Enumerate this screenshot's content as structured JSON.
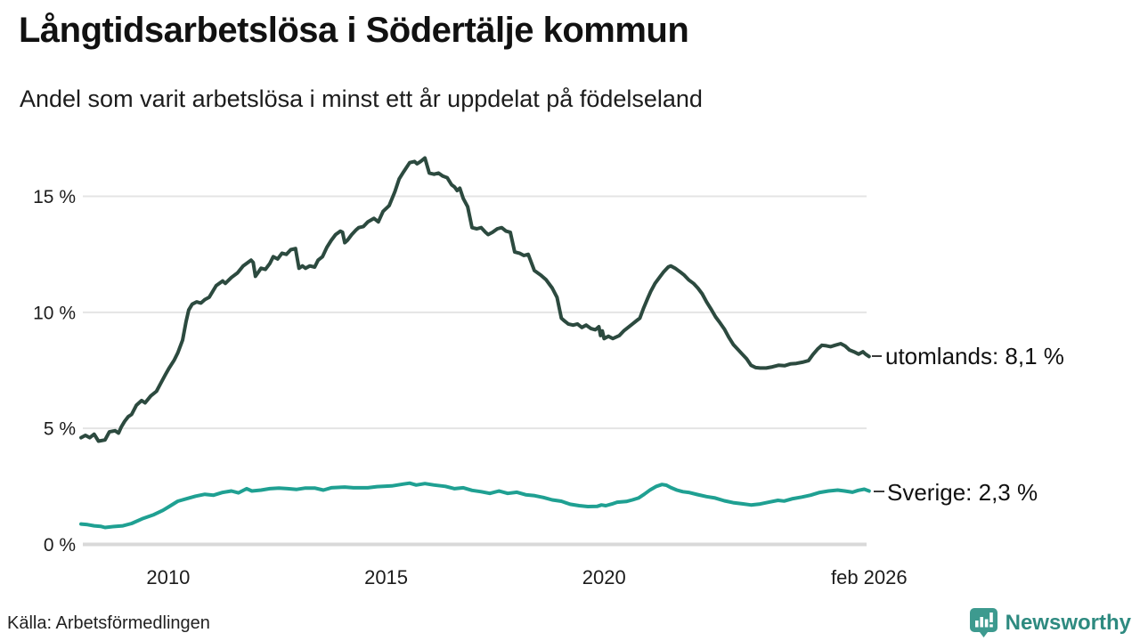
{
  "title": "Långtidsarbetslösa i Södertälje kommun",
  "subtitle": "Andel som varit arbetslösa i minst ett år uppdelat på födelseland",
  "source": "Källa: Arbetsförmedlingen",
  "brand": {
    "name": "Newsworthy",
    "icon_color": "#3d9a8f",
    "text_color": "#2e8a80"
  },
  "colors": {
    "grid": "#e4e4e4",
    "axis_line": "#d9d9d9",
    "label_dash": "#3a3a3a",
    "text": "#111111"
  },
  "chart_data": {
    "type": "line",
    "title": "Långtidsarbetslösa i Södertälje kommun",
    "subtitle": "Andel som varit arbetslösa i minst ett år uppdelat på födelseland",
    "xlabel": "",
    "ylabel": "",
    "xlim": [
      2008.0,
      2026.08
    ],
    "ylim": [
      0,
      15
    ],
    "grid": true,
    "legend_position": "right-end-annotations",
    "y_ticks": [
      {
        "value": 0,
        "label": "0 %",
        "axis": true
      },
      {
        "value": 5,
        "label": "5 %",
        "axis": false
      },
      {
        "value": 10,
        "label": "10 %",
        "axis": false
      },
      {
        "value": 15,
        "label": "15 %",
        "axis": false
      }
    ],
    "x_ticks": [
      {
        "value": 2010,
        "label": "2010"
      },
      {
        "value": 2015,
        "label": "2015"
      },
      {
        "value": 2020,
        "label": "2020"
      },
      {
        "value": 2026.08,
        "label": "feb 2026"
      }
    ],
    "series": [
      {
        "name": "utomlands",
        "label": "utomlands: 8,1 %",
        "end_value": "8,1 %",
        "color": "#2c4a3f",
        "points": [
          [
            2008.0,
            4.6
          ],
          [
            2008.1,
            4.7
          ],
          [
            2008.2,
            4.6
          ],
          [
            2008.3,
            4.75
          ],
          [
            2008.4,
            4.45
          ],
          [
            2008.55,
            4.5
          ],
          [
            2008.65,
            4.85
          ],
          [
            2008.78,
            4.9
          ],
          [
            2008.86,
            4.8
          ],
          [
            2008.92,
            5.05
          ],
          [
            2009.0,
            5.3
          ],
          [
            2009.08,
            5.5
          ],
          [
            2009.16,
            5.6
          ],
          [
            2009.27,
            6.0
          ],
          [
            2009.39,
            6.2
          ],
          [
            2009.47,
            6.1
          ],
          [
            2009.6,
            6.4
          ],
          [
            2009.73,
            6.6
          ],
          [
            2009.83,
            6.95
          ],
          [
            2009.93,
            7.3
          ],
          [
            2010.02,
            7.6
          ],
          [
            2010.14,
            7.95
          ],
          [
            2010.22,
            8.25
          ],
          [
            2010.33,
            8.8
          ],
          [
            2010.41,
            9.6
          ],
          [
            2010.47,
            10.1
          ],
          [
            2010.55,
            10.35
          ],
          [
            2010.65,
            10.45
          ],
          [
            2010.75,
            10.4
          ],
          [
            2010.84,
            10.55
          ],
          [
            2010.94,
            10.65
          ],
          [
            2011.1,
            11.15
          ],
          [
            2011.25,
            11.35
          ],
          [
            2011.31,
            11.25
          ],
          [
            2011.45,
            11.5
          ],
          [
            2011.59,
            11.7
          ],
          [
            2011.72,
            12.0
          ],
          [
            2011.9,
            12.25
          ],
          [
            2011.95,
            12.15
          ],
          [
            2012.0,
            11.55
          ],
          [
            2012.13,
            11.9
          ],
          [
            2012.23,
            11.85
          ],
          [
            2012.33,
            12.1
          ],
          [
            2012.41,
            12.4
          ],
          [
            2012.51,
            12.3
          ],
          [
            2012.61,
            12.55
          ],
          [
            2012.71,
            12.5
          ],
          [
            2012.81,
            12.7
          ],
          [
            2012.92,
            12.75
          ],
          [
            2013.0,
            11.9
          ],
          [
            2013.08,
            12.0
          ],
          [
            2013.15,
            11.9
          ],
          [
            2013.25,
            12.0
          ],
          [
            2013.36,
            11.95
          ],
          [
            2013.44,
            12.25
          ],
          [
            2013.54,
            12.4
          ],
          [
            2013.64,
            12.8
          ],
          [
            2013.74,
            13.1
          ],
          [
            2013.84,
            13.35
          ],
          [
            2013.95,
            13.5
          ],
          [
            2014.0,
            13.45
          ],
          [
            2014.05,
            13.0
          ],
          [
            2014.11,
            13.1
          ],
          [
            2014.21,
            13.35
          ],
          [
            2014.31,
            13.55
          ],
          [
            2014.37,
            13.65
          ],
          [
            2014.48,
            13.7
          ],
          [
            2014.58,
            13.9
          ],
          [
            2014.72,
            14.05
          ],
          [
            2014.82,
            13.9
          ],
          [
            2014.93,
            14.35
          ],
          [
            2015.07,
            14.6
          ],
          [
            2015.2,
            15.2
          ],
          [
            2015.3,
            15.75
          ],
          [
            2015.4,
            16.05
          ],
          [
            2015.54,
            16.45
          ],
          [
            2015.65,
            16.5
          ],
          [
            2015.71,
            16.4
          ],
          [
            2015.79,
            16.5
          ],
          [
            2015.89,
            16.65
          ],
          [
            2015.99,
            16.0
          ],
          [
            2016.1,
            15.95
          ],
          [
            2016.2,
            16.0
          ],
          [
            2016.3,
            15.87
          ],
          [
            2016.4,
            15.8
          ],
          [
            2016.5,
            15.5
          ],
          [
            2016.57,
            15.4
          ],
          [
            2016.63,
            15.25
          ],
          [
            2016.69,
            15.35
          ],
          [
            2016.77,
            14.9
          ],
          [
            2016.87,
            14.55
          ],
          [
            2016.97,
            13.65
          ],
          [
            2017.08,
            13.6
          ],
          [
            2017.18,
            13.65
          ],
          [
            2017.28,
            13.45
          ],
          [
            2017.34,
            13.35
          ],
          [
            2017.44,
            13.45
          ],
          [
            2017.55,
            13.6
          ],
          [
            2017.65,
            13.65
          ],
          [
            2017.75,
            13.5
          ],
          [
            2017.85,
            13.45
          ],
          [
            2017.95,
            12.6
          ],
          [
            2018.06,
            12.55
          ],
          [
            2018.16,
            12.45
          ],
          [
            2018.26,
            12.5
          ],
          [
            2018.4,
            11.8
          ],
          [
            2018.55,
            11.6
          ],
          [
            2018.67,
            11.4
          ],
          [
            2018.81,
            11.05
          ],
          [
            2018.92,
            10.65
          ],
          [
            2019.02,
            9.75
          ],
          [
            2019.08,
            9.65
          ],
          [
            2019.18,
            9.5
          ],
          [
            2019.29,
            9.45
          ],
          [
            2019.39,
            9.5
          ],
          [
            2019.49,
            9.35
          ],
          [
            2019.59,
            9.45
          ],
          [
            2019.7,
            9.3
          ],
          [
            2019.8,
            9.25
          ],
          [
            2019.88,
            9.38
          ],
          [
            2019.92,
            9.0
          ],
          [
            2019.96,
            9.2
          ],
          [
            2020.0,
            8.87
          ],
          [
            2020.1,
            8.97
          ],
          [
            2020.2,
            8.87
          ],
          [
            2020.35,
            9.0
          ],
          [
            2020.45,
            9.2
          ],
          [
            2020.55,
            9.35
          ],
          [
            2020.65,
            9.5
          ],
          [
            2020.75,
            9.65
          ],
          [
            2020.82,
            9.75
          ],
          [
            2020.9,
            10.15
          ],
          [
            2021.0,
            10.6
          ],
          [
            2021.07,
            10.9
          ],
          [
            2021.17,
            11.25
          ],
          [
            2021.27,
            11.5
          ],
          [
            2021.37,
            11.75
          ],
          [
            2021.47,
            11.95
          ],
          [
            2021.53,
            12.0
          ],
          [
            2021.63,
            11.9
          ],
          [
            2021.74,
            11.75
          ],
          [
            2021.84,
            11.6
          ],
          [
            2021.94,
            11.4
          ],
          [
            2022.05,
            11.25
          ],
          [
            2022.15,
            11.05
          ],
          [
            2022.25,
            10.8
          ],
          [
            2022.35,
            10.45
          ],
          [
            2022.45,
            10.15
          ],
          [
            2022.56,
            9.8
          ],
          [
            2022.66,
            9.55
          ],
          [
            2022.76,
            9.28
          ],
          [
            2022.86,
            8.93
          ],
          [
            2022.97,
            8.6
          ],
          [
            2023.07,
            8.4
          ],
          [
            2023.17,
            8.2
          ],
          [
            2023.27,
            8.0
          ],
          [
            2023.37,
            7.72
          ],
          [
            2023.48,
            7.62
          ],
          [
            2023.58,
            7.6
          ],
          [
            2023.72,
            7.6
          ],
          [
            2023.86,
            7.65
          ],
          [
            2024.0,
            7.72
          ],
          [
            2024.14,
            7.7
          ],
          [
            2024.28,
            7.78
          ],
          [
            2024.41,
            7.8
          ],
          [
            2024.55,
            7.85
          ],
          [
            2024.69,
            7.92
          ],
          [
            2024.79,
            8.18
          ],
          [
            2024.9,
            8.42
          ],
          [
            2025.0,
            8.58
          ],
          [
            2025.1,
            8.56
          ],
          [
            2025.2,
            8.52
          ],
          [
            2025.3,
            8.58
          ],
          [
            2025.43,
            8.65
          ],
          [
            2025.53,
            8.55
          ],
          [
            2025.63,
            8.38
          ],
          [
            2025.73,
            8.3
          ],
          [
            2025.84,
            8.2
          ],
          [
            2025.94,
            8.3
          ],
          [
            2026.0,
            8.2
          ],
          [
            2026.08,
            8.1
          ]
        ]
      },
      {
        "name": "Sverige",
        "label": "Sverige: 2,3 %",
        "end_value": "2,3 %",
        "color": "#1fa092",
        "points": [
          [
            2008.0,
            0.88
          ],
          [
            2008.15,
            0.85
          ],
          [
            2008.3,
            0.8
          ],
          [
            2008.45,
            0.78
          ],
          [
            2008.55,
            0.73
          ],
          [
            2008.76,
            0.77
          ],
          [
            2008.96,
            0.8
          ],
          [
            2009.16,
            0.9
          ],
          [
            2009.4,
            1.1
          ],
          [
            2009.67,
            1.28
          ],
          [
            2009.88,
            1.47
          ],
          [
            2010.02,
            1.63
          ],
          [
            2010.22,
            1.86
          ],
          [
            2010.43,
            1.97
          ],
          [
            2010.63,
            2.08
          ],
          [
            2010.84,
            2.16
          ],
          [
            2011.04,
            2.12
          ],
          [
            2011.25,
            2.24
          ],
          [
            2011.45,
            2.3
          ],
          [
            2011.61,
            2.22
          ],
          [
            2011.8,
            2.4
          ],
          [
            2011.92,
            2.3
          ],
          [
            2012.13,
            2.34
          ],
          [
            2012.33,
            2.4
          ],
          [
            2012.54,
            2.43
          ],
          [
            2012.74,
            2.4
          ],
          [
            2012.95,
            2.37
          ],
          [
            2013.15,
            2.43
          ],
          [
            2013.36,
            2.43
          ],
          [
            2013.56,
            2.34
          ],
          [
            2013.74,
            2.44
          ],
          [
            2014.05,
            2.47
          ],
          [
            2014.25,
            2.44
          ],
          [
            2014.58,
            2.44
          ],
          [
            2014.79,
            2.49
          ],
          [
            2015.13,
            2.52
          ],
          [
            2015.4,
            2.6
          ],
          [
            2015.54,
            2.64
          ],
          [
            2015.69,
            2.56
          ],
          [
            2015.89,
            2.62
          ],
          [
            2016.1,
            2.56
          ],
          [
            2016.36,
            2.5
          ],
          [
            2016.57,
            2.4
          ],
          [
            2016.77,
            2.44
          ],
          [
            2016.97,
            2.33
          ],
          [
            2017.18,
            2.27
          ],
          [
            2017.38,
            2.2
          ],
          [
            2017.59,
            2.3
          ],
          [
            2017.79,
            2.2
          ],
          [
            2018.0,
            2.25
          ],
          [
            2018.2,
            2.14
          ],
          [
            2018.41,
            2.1
          ],
          [
            2018.61,
            2.02
          ],
          [
            2018.81,
            1.92
          ],
          [
            2019.02,
            1.86
          ],
          [
            2019.22,
            1.73
          ],
          [
            2019.43,
            1.67
          ],
          [
            2019.63,
            1.63
          ],
          [
            2019.84,
            1.64
          ],
          [
            2019.94,
            1.7
          ],
          [
            2020.04,
            1.67
          ],
          [
            2020.18,
            1.74
          ],
          [
            2020.3,
            1.82
          ],
          [
            2020.51,
            1.85
          ],
          [
            2020.65,
            1.92
          ],
          [
            2020.79,
            2.0
          ],
          [
            2020.92,
            2.16
          ],
          [
            2021.06,
            2.35
          ],
          [
            2021.2,
            2.5
          ],
          [
            2021.33,
            2.58
          ],
          [
            2021.43,
            2.55
          ],
          [
            2021.53,
            2.45
          ],
          [
            2021.67,
            2.34
          ],
          [
            2021.81,
            2.27
          ],
          [
            2021.94,
            2.24
          ],
          [
            2022.14,
            2.15
          ],
          [
            2022.35,
            2.06
          ],
          [
            2022.55,
            2.0
          ],
          [
            2022.76,
            1.88
          ],
          [
            2022.96,
            1.8
          ],
          [
            2023.17,
            1.75
          ],
          [
            2023.37,
            1.7
          ],
          [
            2023.58,
            1.74
          ],
          [
            2023.78,
            1.82
          ],
          [
            2023.99,
            1.9
          ],
          [
            2024.13,
            1.87
          ],
          [
            2024.33,
            1.97
          ],
          [
            2024.54,
            2.04
          ],
          [
            2024.74,
            2.12
          ],
          [
            2024.95,
            2.24
          ],
          [
            2025.15,
            2.3
          ],
          [
            2025.36,
            2.34
          ],
          [
            2025.52,
            2.3
          ],
          [
            2025.7,
            2.25
          ],
          [
            2025.83,
            2.33
          ],
          [
            2025.97,
            2.38
          ],
          [
            2026.08,
            2.3
          ]
        ]
      }
    ]
  }
}
